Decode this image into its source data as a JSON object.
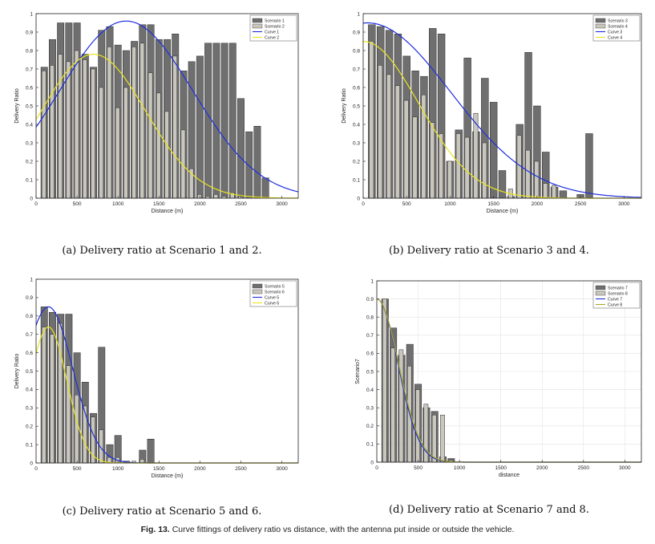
{
  "figure": {
    "caption_label": "Fig. 13.",
    "caption_text": "Curve fittings of delivery ratio vs distance, with the antenna put inside or outside the vehicle."
  },
  "chart_data": [
    {
      "type": "bar",
      "subcaption": "(a) Delivery ratio at Scenario 1 and 2.",
      "xlabel": "Distance (m)",
      "ylabel": "Delivery Ratio",
      "xlim": [
        0,
        3200
      ],
      "ylim": [
        0,
        1
      ],
      "xticks": [
        "0",
        "500",
        "1000",
        "1500",
        "2000",
        "2500",
        "3000"
      ],
      "yticks": [
        "0",
        "0.1",
        "0.2",
        "0.3",
        "0.4",
        "0.5",
        "0.6",
        "0.7",
        "0.8",
        "0.9",
        "1"
      ],
      "legend_position": "top-right",
      "legend": [
        "Scenario 1",
        "Scenario 2",
        "Curve 1",
        "Curve 2"
      ],
      "x": [
        100,
        200,
        300,
        400,
        500,
        600,
        700,
        800,
        900,
        1000,
        1100,
        1200,
        1300,
        1400,
        1500,
        1600,
        1700,
        1800,
        1900,
        2000,
        2100,
        2200,
        2300,
        2400,
        2500,
        2600,
        2700,
        2800,
        2900
      ],
      "series": [
        {
          "name": "Scenario 1",
          "role": "dark",
          "values": [
            0.71,
            0.86,
            0.95,
            0.95,
            0.95,
            0.78,
            0.71,
            0.91,
            0.93,
            0.83,
            0.8,
            0.85,
            0.94,
            0.94,
            0.86,
            0.86,
            0.89,
            0.69,
            0.74,
            0.77,
            0.84,
            0.84,
            0.84,
            0.84,
            0.54,
            0.36,
            0.39,
            0.11,
            0
          ]
        },
        {
          "name": "Scenario 2",
          "role": "light",
          "values": [
            0.69,
            0.72,
            0.78,
            0.74,
            0.8,
            0.75,
            0.7,
            0.6,
            0.82,
            0.49,
            0.6,
            0.82,
            0.84,
            0.68,
            0.57,
            0.47,
            0.77,
            0.37,
            0.16,
            0.02,
            0.01,
            0.02,
            0.01,
            0.03,
            0.01,
            0,
            0,
            0,
            0
          ]
        }
      ],
      "curves": [
        {
          "name": "Curve 1",
          "color": "#1f2fdc",
          "peak": 0.96,
          "center": 1100,
          "sigma": 1150
        },
        {
          "name": "Curve 2",
          "color": "#e8e420",
          "peak": 0.78,
          "center": 700,
          "sigma": 900
        }
      ]
    },
    {
      "type": "bar",
      "subcaption": "(b) Delivery ratio at Scenario 3 and 4.",
      "xlabel": "Distance (m)",
      "ylabel": "Delivery Ratio",
      "xlim": [
        0,
        3200
      ],
      "ylim": [
        0,
        1
      ],
      "xticks": [
        "0",
        "500",
        "1000",
        "1500",
        "2000",
        "2500",
        "3000"
      ],
      "yticks": [
        "0",
        "0.1",
        "0.2",
        "0.3",
        "0.4",
        "0.5",
        "0.6",
        "0.7",
        "0.8",
        "0.9",
        "1"
      ],
      "legend_position": "top-right",
      "legend": [
        "Scenario 3",
        "Scenario 4",
        "Curve 3",
        "Curve 4"
      ],
      "x": [
        100,
        200,
        300,
        400,
        500,
        600,
        700,
        800,
        900,
        1000,
        1100,
        1200,
        1300,
        1400,
        1500,
        1600,
        1700,
        1800,
        1900,
        2000,
        2100,
        2200,
        2300,
        2400,
        2500,
        2600
      ],
      "series": [
        {
          "name": "Scenario 3",
          "role": "dark",
          "values": [
            0.94,
            0.93,
            0.91,
            0.89,
            0.77,
            0.69,
            0.66,
            0.92,
            0.89,
            0.2,
            0.37,
            0.76,
            0.36,
            0.65,
            0.52,
            0.15,
            0.01,
            0.4,
            0.79,
            0.5,
            0.25,
            0.06,
            0.04,
            0.0,
            0.02,
            0.35
          ]
        },
        {
          "name": "Scenario 4",
          "role": "light",
          "values": [
            0.85,
            0.72,
            0.67,
            0.61,
            0.53,
            0.44,
            0.56,
            0.41,
            0.35,
            0.2,
            0.35,
            0.33,
            0.46,
            0.3,
            0.0,
            0.0,
            0.05,
            0.34,
            0.26,
            0.2,
            0.08,
            0.07,
            0.0,
            0.0,
            0.0,
            0.0
          ]
        }
      ],
      "curves": [
        {
          "name": "Curve 3",
          "color": "#1f2fdc",
          "peak": 0.95,
          "center": 50,
          "sigma": 1350
        },
        {
          "name": "Curve 4",
          "color": "#e8e420",
          "peak": 0.85,
          "center": 0,
          "sigma": 900
        }
      ]
    },
    {
      "type": "bar",
      "subcaption": "(c) Delivery ratio at Scenario 5 and 6.",
      "xlabel": "Distance (m)",
      "ylabel": "Delivery Ratio",
      "xlim": [
        0,
        3200
      ],
      "ylim": [
        0,
        1
      ],
      "xticks": [
        "0",
        "500",
        "1000",
        "1500",
        "2000",
        "2500",
        "3000"
      ],
      "yticks": [
        "0",
        "0.1",
        "0.2",
        "0.3",
        "0.4",
        "0.5",
        "0.6",
        "0.7",
        "0.8",
        "0.9",
        "1"
      ],
      "legend_position": "top-right",
      "legend": [
        "Scenario 5",
        "Scenario 6",
        "Curve 5",
        "Curve 6"
      ],
      "x": [
        100,
        200,
        300,
        400,
        500,
        600,
        700,
        800,
        900,
        1000,
        1100,
        1200,
        1300,
        1400
      ],
      "series": [
        {
          "name": "Scenario 5",
          "role": "dark",
          "values": [
            0.85,
            0.82,
            0.81,
            0.81,
            0.6,
            0.44,
            0.27,
            0.63,
            0.1,
            0.15,
            0.01,
            0.0,
            0.07,
            0.13
          ]
        },
        {
          "name": "Scenario 6",
          "role": "light",
          "values": [
            0.74,
            0.7,
            0.76,
            0.53,
            0.37,
            0.31,
            0.25,
            0.18,
            0.03,
            0.03,
            0.0,
            0.01,
            0.02,
            0.0
          ]
        }
      ],
      "curves": [
        {
          "name": "Curve 5",
          "color": "#1f2fdc",
          "peak": 0.85,
          "center": 150,
          "sigma": 420
        },
        {
          "name": "Curve 6",
          "color": "#e8e420",
          "peak": 0.74,
          "center": 150,
          "sigma": 320
        }
      ]
    },
    {
      "type": "bar",
      "subcaption": "(d) Delivery ratio at Scenario 7 and 8.",
      "xlabel": "distance",
      "ylabel": "Scenario7",
      "xlim": [
        0,
        3200
      ],
      "ylim": [
        0,
        1
      ],
      "xticks": [
        "0",
        "500",
        "1000",
        "1500",
        "2000",
        "2500",
        "3000"
      ],
      "yticks": [
        "0",
        "0.1",
        "0.2",
        "0.3",
        "0.4",
        "0.5",
        "0.6",
        "0.7",
        "0.8",
        "0.9",
        "1"
      ],
      "grid": true,
      "legend_position": "top-right",
      "legend": [
        "Scenario 7",
        "Scenario 8",
        "Curve 7",
        "Curve 8"
      ],
      "x": [
        100,
        200,
        300,
        400,
        500,
        600,
        700,
        800,
        900
      ],
      "series": [
        {
          "name": "Scenario 7",
          "role": "dark",
          "values": [
            0.9,
            0.74,
            0.59,
            0.65,
            0.43,
            0.3,
            0.28,
            0.03,
            0.02
          ]
        },
        {
          "name": "Scenario 8",
          "role": "light",
          "values": [
            0.9,
            0.63,
            0.62,
            0.53,
            0.4,
            0.32,
            0.26,
            0.26,
            0.01
          ]
        }
      ],
      "curves": [
        {
          "name": "Curve 7",
          "color": "#1f2fdc",
          "peak": 0.9,
          "center": 0,
          "sigma": 360
        },
        {
          "name": "Curve 8",
          "color": "#a8a820",
          "peak": 0.9,
          "center": 0,
          "sigma": 370
        }
      ]
    }
  ]
}
